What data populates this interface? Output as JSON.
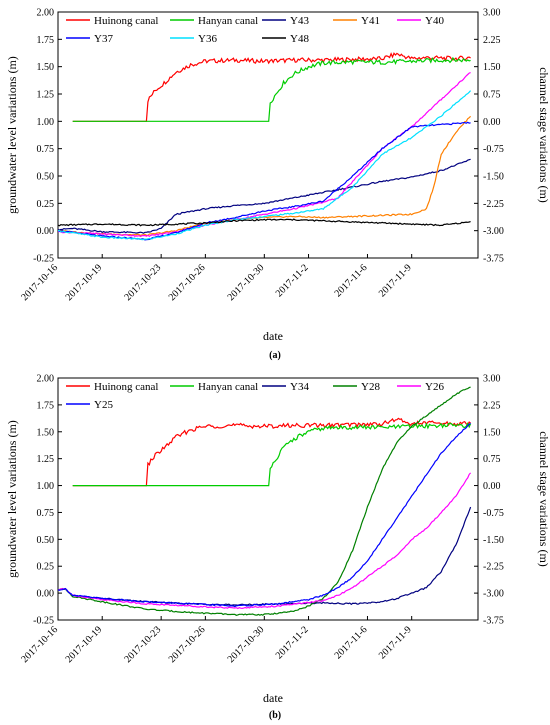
{
  "chart_data": [
    {
      "type": "line",
      "panel_label": "(a)",
      "xlabel": "date",
      "ylabel": "groundwater level variations (m)",
      "y2label": "channel stage variations (m)",
      "xtick_labels": [
        "2017-10-16",
        "2017-10-19",
        "2017-10-23",
        "2017-10-26",
        "2017-10-30",
        "2017-11-2",
        "2017-11-6",
        "2017-11-9"
      ],
      "xlim": [
        0,
        28.5
      ],
      "xtick_days": [
        0,
        3,
        7,
        10,
        14,
        17,
        21,
        24
      ],
      "ylim": [
        -0.25,
        2.0
      ],
      "yticks": [
        "-0.25",
        "0.00",
        "0.25",
        "0.50",
        "0.75",
        "1.00",
        "1.25",
        "1.50",
        "1.75",
        "2.00"
      ],
      "y2lim": [
        -3.75,
        3.0
      ],
      "y2ticks": [
        "-3.75",
        "-3.00",
        "-2.25",
        "-1.50",
        "-0.75",
        "0.00",
        "0.75",
        "1.50",
        "2.25",
        "3.00"
      ],
      "legend_position": "top",
      "series": [
        {
          "name": "Huinong canal",
          "color": "#ff0000",
          "axis": "right",
          "x": [
            1,
            6,
            6.05,
            6.6,
            7.2,
            8,
            9,
            10,
            12,
            14,
            16,
            18,
            20,
            22,
            23,
            24,
            25,
            27,
            28
          ],
          "y": [
            0,
            0,
            0.55,
            0.85,
            1.05,
            1.35,
            1.55,
            1.65,
            1.68,
            1.65,
            1.68,
            1.68,
            1.7,
            1.72,
            1.85,
            1.72,
            1.75,
            1.72,
            1.75
          ]
        },
        {
          "name": "Hanyan canal",
          "color": "#00cc00",
          "axis": "right",
          "x": [
            1,
            14.3,
            14.35,
            14.8,
            15.3,
            16,
            17,
            18,
            20,
            22,
            24,
            26,
            28
          ],
          "y": [
            0,
            0,
            0.5,
            0.75,
            1.05,
            1.3,
            1.5,
            1.6,
            1.63,
            1.62,
            1.65,
            1.68,
            1.68
          ]
        },
        {
          "name": "Y43",
          "color": "#000080",
          "axis": "left",
          "x": [
            0,
            1,
            3,
            6,
            7,
            8,
            10,
            12,
            14,
            16,
            18,
            20,
            22,
            24,
            26,
            28
          ],
          "y": [
            0.01,
            0.02,
            -0.01,
            -0.02,
            0.02,
            0.15,
            0.2,
            0.23,
            0.25,
            0.3,
            0.35,
            0.4,
            0.45,
            0.49,
            0.55,
            0.65
          ]
        },
        {
          "name": "Y41",
          "color": "#ff8000",
          "axis": "left",
          "x": [
            0,
            3,
            6,
            8,
            10,
            12,
            14,
            16,
            18,
            20,
            22,
            24,
            25,
            25.5,
            26,
            27,
            28
          ],
          "y": [
            0.0,
            -0.03,
            -0.04,
            0.0,
            0.07,
            0.1,
            0.12,
            0.13,
            0.12,
            0.13,
            0.14,
            0.15,
            0.2,
            0.4,
            0.7,
            0.9,
            1.05
          ]
        },
        {
          "name": "Y40",
          "color": "#ff00ff",
          "axis": "left",
          "x": [
            0,
            3,
            6,
            8,
            10,
            12,
            14,
            16,
            18,
            19,
            20,
            22,
            24,
            26,
            28
          ],
          "y": [
            -0.01,
            -0.03,
            -0.05,
            -0.01,
            0.05,
            0.1,
            0.15,
            0.2,
            0.26,
            0.3,
            0.45,
            0.75,
            0.95,
            1.2,
            1.45
          ]
        },
        {
          "name": "Y37",
          "color": "#0000ff",
          "axis": "left",
          "x": [
            0,
            3,
            6,
            8,
            10,
            12,
            14,
            16,
            18,
            20,
            22,
            24,
            26,
            28
          ],
          "y": [
            0.0,
            -0.05,
            -0.08,
            -0.02,
            0.07,
            0.12,
            0.18,
            0.22,
            0.27,
            0.5,
            0.75,
            0.95,
            0.97,
            0.99
          ]
        },
        {
          "name": "Y36",
          "color": "#00e0ff",
          "axis": "left",
          "x": [
            0,
            3,
            6,
            8,
            10,
            12,
            14,
            16,
            18,
            20,
            22,
            24,
            26,
            28
          ],
          "y": [
            0.0,
            -0.06,
            -0.08,
            -0.03,
            0.05,
            0.1,
            0.13,
            0.16,
            0.2,
            0.4,
            0.7,
            0.85,
            1.05,
            1.28
          ]
        },
        {
          "name": "Y48",
          "color": "#000000",
          "axis": "left",
          "x": [
            0,
            3,
            6,
            8,
            10,
            12,
            14,
            16,
            18,
            20,
            22,
            24,
            26,
            28
          ],
          "y": [
            0.05,
            0.06,
            0.05,
            0.06,
            0.07,
            0.09,
            0.1,
            0.1,
            0.09,
            0.08,
            0.07,
            0.06,
            0.05,
            0.08
          ]
        }
      ]
    },
    {
      "type": "line",
      "panel_label": "(b)",
      "xlabel": "date",
      "ylabel": "groundwater level variations (m)",
      "y2label": "channel stage variations (m)",
      "xtick_labels": [
        "2017-10-16",
        "2017-10-19",
        "2017-10-23",
        "2017-10-26",
        "2017-10-30",
        "2017-11-2",
        "2017-11-6",
        "2017-11-9"
      ],
      "xlim": [
        0,
        28.5
      ],
      "xtick_days": [
        0,
        3,
        7,
        10,
        14,
        17,
        21,
        24
      ],
      "ylim": [
        -0.25,
        2.0
      ],
      "yticks": [
        "-0.25",
        "0.00",
        "0.25",
        "0.50",
        "0.75",
        "1.00",
        "1.25",
        "1.50",
        "1.75",
        "2.00"
      ],
      "y2lim": [
        -3.75,
        3.0
      ],
      "y2ticks": [
        "-3.75",
        "-3.00",
        "-2.25",
        "-1.50",
        "-0.75",
        "0.00",
        "0.75",
        "1.50",
        "2.25",
        "3.00"
      ],
      "legend_position": "top",
      "series": [
        {
          "name": "Huinong canal",
          "color": "#ff0000",
          "axis": "right",
          "x": [
            1,
            6,
            6.05,
            6.6,
            7.2,
            8,
            9,
            10,
            12,
            14,
            16,
            18,
            20,
            22,
            23,
            24,
            25,
            27,
            28
          ],
          "y": [
            0,
            0,
            0.55,
            0.85,
            1.05,
            1.35,
            1.55,
            1.65,
            1.68,
            1.65,
            1.68,
            1.68,
            1.7,
            1.72,
            1.85,
            1.72,
            1.75,
            1.72,
            1.75
          ]
        },
        {
          "name": "Hanyan canal",
          "color": "#00cc00",
          "axis": "right",
          "x": [
            1,
            14.3,
            14.35,
            14.8,
            15.3,
            16,
            17,
            18,
            20,
            22,
            24,
            26,
            28
          ],
          "y": [
            0,
            0,
            0.5,
            0.75,
            1.05,
            1.3,
            1.5,
            1.6,
            1.63,
            1.62,
            1.65,
            1.68,
            1.68
          ]
        },
        {
          "name": "Y34",
          "color": "#000080",
          "axis": "left",
          "x": [
            0,
            0.5,
            1,
            3,
            6,
            9,
            12,
            15,
            18,
            20,
            22,
            23,
            24,
            25,
            26,
            27,
            28
          ],
          "y": [
            0.03,
            0.04,
            -0.02,
            -0.05,
            -0.08,
            -0.1,
            -0.11,
            -0.1,
            -0.09,
            -0.1,
            -0.08,
            -0.05,
            0.0,
            0.05,
            0.2,
            0.45,
            0.8
          ]
        },
        {
          "name": "Y28",
          "color": "#008000",
          "axis": "left",
          "x": [
            0,
            0.5,
            1,
            3,
            6,
            9,
            12,
            14,
            16,
            17,
            18,
            19,
            20,
            21,
            22,
            23,
            24,
            25,
            26,
            27,
            28
          ],
          "y": [
            0.03,
            0.04,
            -0.03,
            -0.08,
            -0.15,
            -0.18,
            -0.2,
            -0.2,
            -0.17,
            -0.12,
            -0.05,
            0.1,
            0.4,
            0.8,
            1.15,
            1.4,
            1.55,
            1.65,
            1.75,
            1.85,
            1.92
          ]
        },
        {
          "name": "Y26",
          "color": "#ff00ff",
          "axis": "left",
          "x": [
            0,
            0.5,
            1,
            3,
            6,
            9,
            12,
            15,
            18,
            19,
            20,
            21,
            22,
            23,
            24,
            25,
            26,
            27,
            28
          ],
          "y": [
            0.03,
            0.04,
            -0.02,
            -0.06,
            -0.1,
            -0.12,
            -0.14,
            -0.12,
            -0.07,
            -0.02,
            0.05,
            0.15,
            0.25,
            0.35,
            0.5,
            0.6,
            0.75,
            0.9,
            1.12
          ]
        },
        {
          "name": "Y25",
          "color": "#0000ff",
          "axis": "left",
          "x": [
            0,
            0.5,
            1,
            3,
            6,
            9,
            12,
            15,
            17,
            18,
            19,
            20,
            21,
            22,
            23,
            24,
            25,
            26,
            27,
            28
          ],
          "y": [
            0.03,
            0.04,
            -0.02,
            -0.05,
            -0.08,
            -0.1,
            -0.12,
            -0.1,
            -0.06,
            -0.02,
            0.05,
            0.15,
            0.3,
            0.5,
            0.7,
            0.9,
            1.1,
            1.3,
            1.45,
            1.58
          ]
        }
      ]
    }
  ]
}
